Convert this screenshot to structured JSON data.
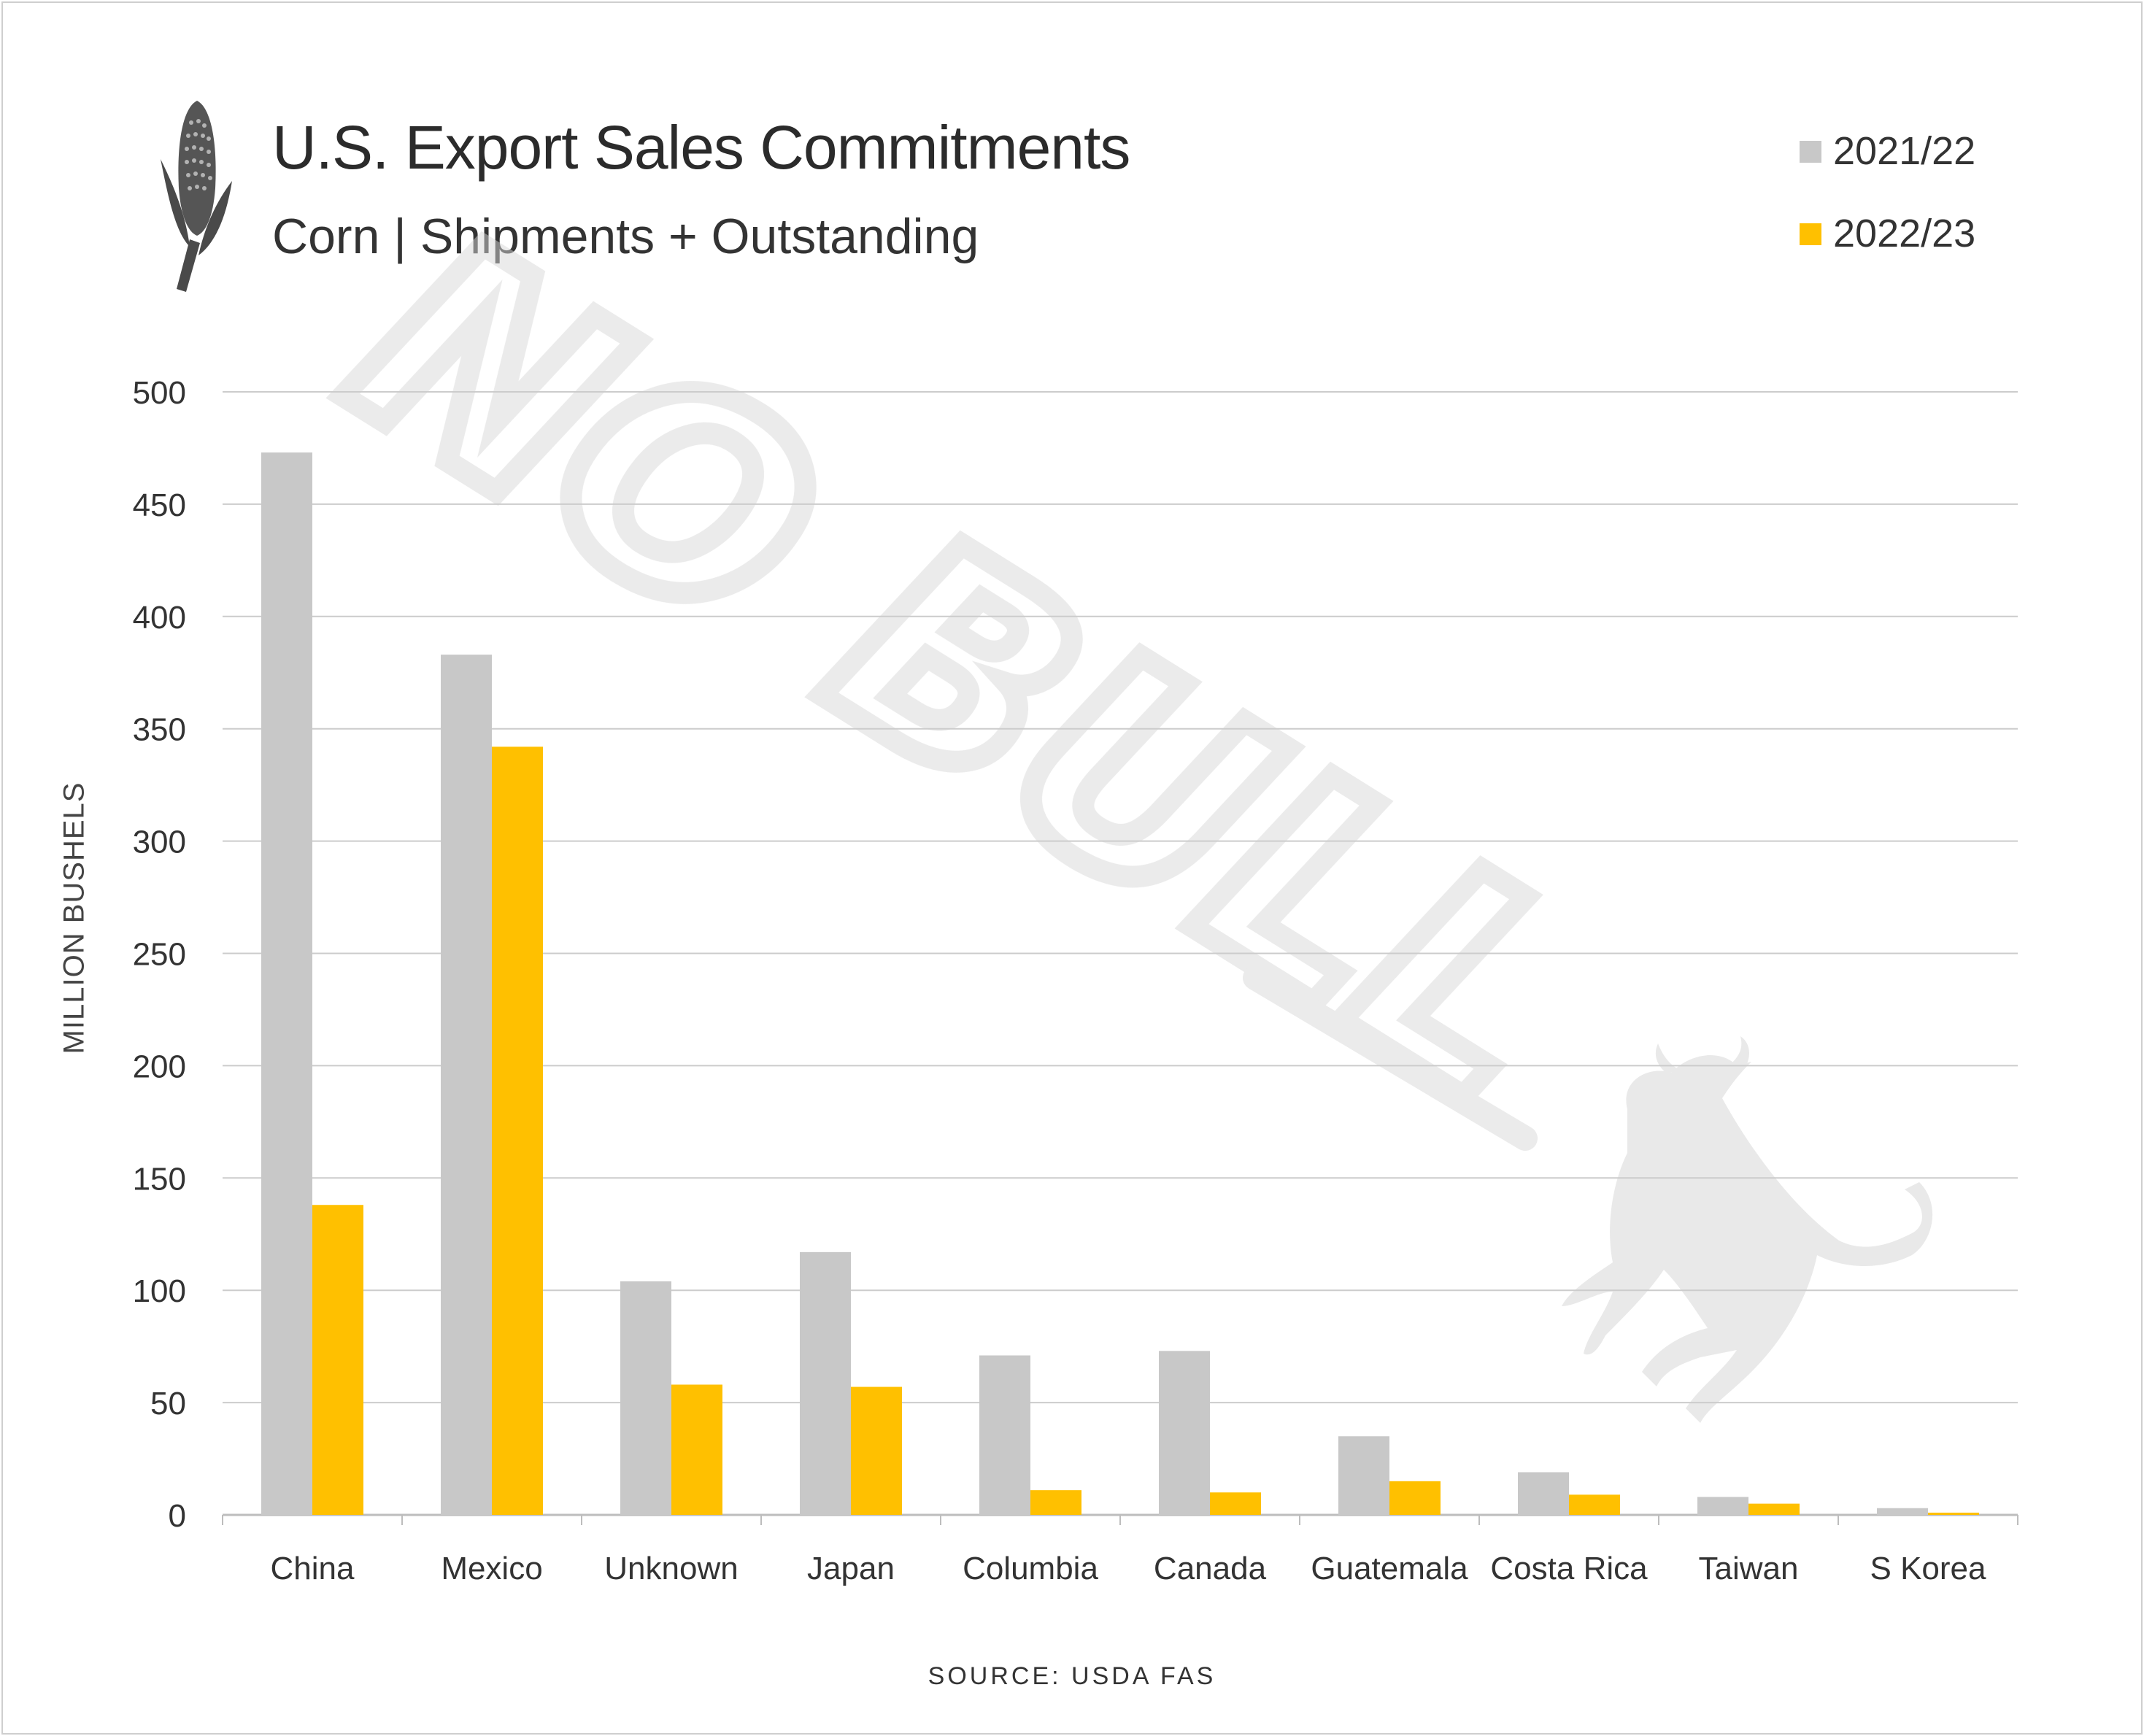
{
  "header": {
    "title": "U.S. Export Sales Commitments",
    "subtitle": "Corn  |  Shipments + Outstanding",
    "icon": "corn-icon"
  },
  "watermark": {
    "text": "NO BULL",
    "icon": "bull-icon"
  },
  "footer": {
    "source": "SOURCE: USDA FAS"
  },
  "chart_data": {
    "type": "bar",
    "categories": [
      "China",
      "Mexico",
      "Unknown",
      "Japan",
      "Columbia",
      "Canada",
      "Guatemala",
      "Costa Rica",
      "Taiwan",
      "S Korea"
    ],
    "series": [
      {
        "name": "2021/22",
        "color": "#c8c8c8",
        "values": [
          473,
          383,
          104,
          117,
          71,
          73,
          35,
          19,
          8,
          3
        ]
      },
      {
        "name": "2022/23",
        "color": "#ffc000",
        "values": [
          138,
          342,
          58,
          57,
          11,
          10,
          15,
          9,
          5,
          1
        ]
      }
    ],
    "ylabel": "MILLION BUSHELS",
    "ylim": [
      0,
      500
    ],
    "yticks": [
      0,
      50,
      100,
      150,
      200,
      250,
      300,
      350,
      400,
      450,
      500
    ],
    "grid": true,
    "legend_position": "top-right"
  }
}
